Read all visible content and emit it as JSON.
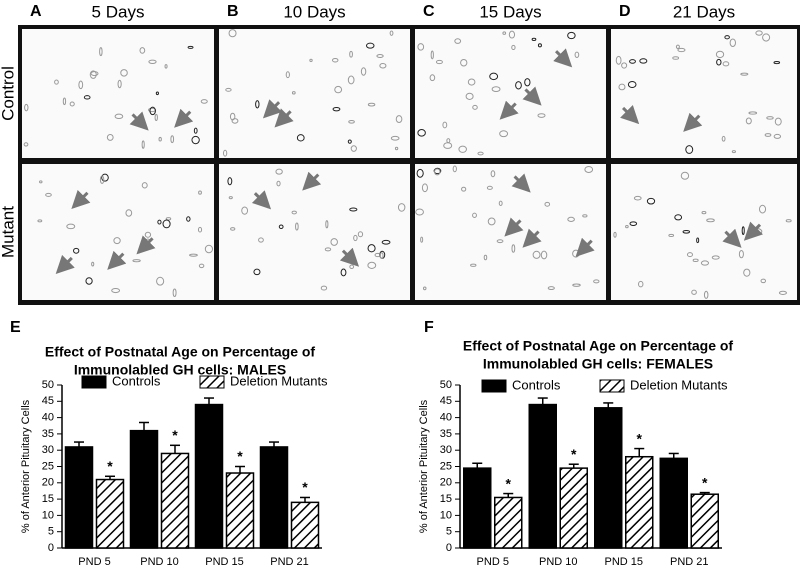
{
  "micrographs": {
    "panel_labels": [
      "A",
      "B",
      "C",
      "D"
    ],
    "columns": [
      "5 Days",
      "10 Days",
      "15 Days",
      "21 Days"
    ],
    "rows": [
      "Control",
      "Mutant"
    ]
  },
  "chart_panel_labels": [
    "E",
    "F"
  ],
  "chart_data": [
    {
      "type": "bar",
      "title": [
        "Effect of Postnatal Age on Percentage of",
        "Immunolabled GH cells: MALES"
      ],
      "y_label": "% of Anterior Pituitary Cells",
      "categories": [
        "PND 5",
        "PND 10",
        "PND 15",
        "PND 21"
      ],
      "series": [
        {
          "name": "Controls",
          "color": "#000000",
          "values": [
            31,
            36,
            44,
            31
          ],
          "errors": [
            1.5,
            2.5,
            2,
            1.5
          ]
        },
        {
          "name": "Deletion Mutants",
          "color": "#000000",
          "hatch": true,
          "values": [
            21,
            29,
            23,
            14
          ],
          "errors": [
            1,
            2.5,
            2,
            1.5
          ],
          "annotations": [
            "*",
            "*",
            "*",
            "*"
          ]
        }
      ],
      "ylim": [
        0,
        50
      ],
      "yticks": [
        0,
        5,
        10,
        15,
        20,
        25,
        30,
        35,
        40,
        45,
        50
      ]
    },
    {
      "type": "bar",
      "title": [
        "Effect of Postnatal Age on Percentage of",
        "Immunolabled GH cells: FEMALES"
      ],
      "y_label": "% of Anterior Pituitary Cells",
      "categories": [
        "PND 5",
        "PND 10",
        "PND 15",
        "PND 21"
      ],
      "series": [
        {
          "name": "Controls",
          "color": "#000000",
          "values": [
            24.5,
            44,
            43,
            27.5
          ],
          "errors": [
            1.5,
            2,
            1.5,
            1.5
          ]
        },
        {
          "name": "Deletion Mutants",
          "color": "#000000",
          "hatch": true,
          "values": [
            15.5,
            24.5,
            28,
            16.5
          ],
          "errors": [
            1.2,
            1.2,
            2.5,
            0.5
          ],
          "annotations": [
            "*",
            "*",
            "*",
            "*"
          ]
        }
      ],
      "ylim": [
        0,
        50
      ],
      "yticks": [
        0,
        5,
        10,
        15,
        20,
        25,
        30,
        35,
        40,
        45,
        50
      ]
    }
  ]
}
